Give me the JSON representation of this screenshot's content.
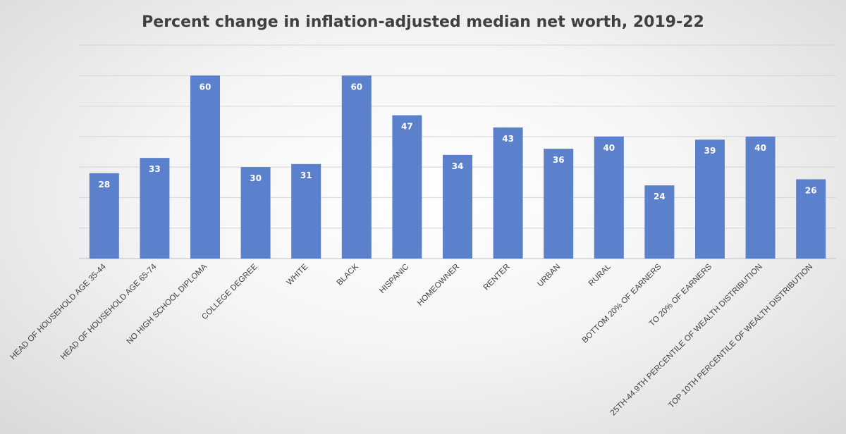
{
  "chart_data": {
    "type": "bar",
    "title": "Percent change in inflation-adjusted median net worth, 2019-22",
    "categories": [
      "HEAD OF HOUSEHOLD AGE 35-44",
      "HEAD OF HOUSEHOLD AGE 65-74",
      "NO HIGH SCHOOL DIPLOMA",
      "COLLEGE DEGREE",
      "WHITE",
      "BLACK",
      "HISPANIC",
      "HOMEOWNER",
      "RENTER",
      "URBAN",
      "RURAL",
      "BOTTOM 20% OF EARNERS",
      "TO 20% OF EARNERS",
      "25TH-44.9TH PERCENTILE OF WEALTH DISTRIBUTION",
      "TOP 10TH PERCENTILE OF WEALTH DISTRIBUTION"
    ],
    "values": [
      28,
      33,
      60,
      30,
      31,
      60,
      47,
      34,
      43,
      36,
      40,
      24,
      39,
      40,
      26
    ],
    "ylim": [
      0,
      70
    ],
    "grid": true,
    "bar_color": "#5b80cc",
    "background_color": "#f5f5f5"
  }
}
